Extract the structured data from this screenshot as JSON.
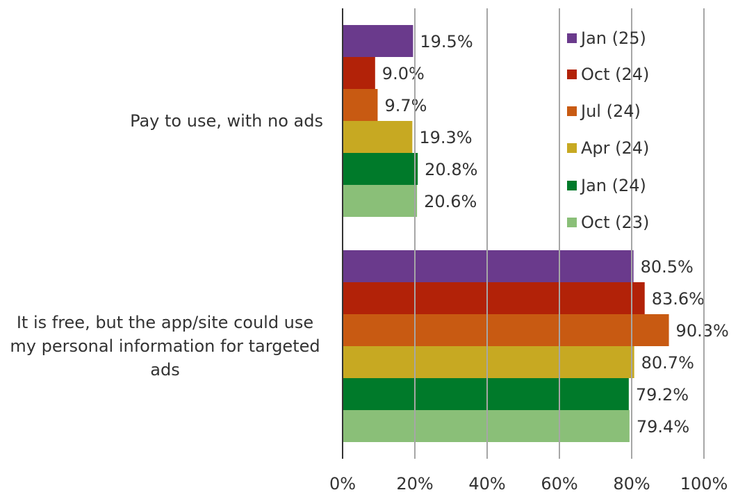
{
  "chart_data": {
    "type": "barh",
    "categories": [
      "Pay to use, with no ads",
      "It is free, but the app/site could use my personal information for targeted ads"
    ],
    "series": [
      {
        "name": "Jan (25)",
        "color": "#6a3a8c",
        "values": [
          19.5,
          80.5
        ],
        "value_labels": [
          "19.5%",
          "80.5%"
        ]
      },
      {
        "name": "Oct (24)",
        "color": "#b22208",
        "values": [
          9.0,
          83.6
        ],
        "value_labels": [
          "9.0%",
          "83.6%"
        ]
      },
      {
        "name": "Jul (24)",
        "color": "#c85a12",
        "values": [
          9.7,
          90.3
        ],
        "value_labels": [
          "9.7%",
          "90.3%"
        ]
      },
      {
        "name": "Apr (24)",
        "color": "#c7a922",
        "values": [
          19.3,
          80.7
        ],
        "value_labels": [
          "19.3%",
          "80.7%"
        ]
      },
      {
        "name": "Jan (24)",
        "color": "#007a2a",
        "values": [
          20.8,
          79.2
        ],
        "value_labels": [
          "20.8%",
          "79.2%"
        ]
      },
      {
        "name": "Oct (23)",
        "color": "#8abf78",
        "values": [
          20.6,
          79.4
        ],
        "value_labels": [
          "20.6%",
          "79.4%"
        ]
      }
    ],
    "xlim": [
      0,
      100
    ],
    "xticks": [
      {
        "value": 0,
        "label": "0%"
      },
      {
        "value": 20,
        "label": "20%"
      },
      {
        "value": 40,
        "label": "40%"
      },
      {
        "value": 60,
        "label": "60%"
      },
      {
        "value": 80,
        "label": "80%"
      },
      {
        "value": 100,
        "label": "100%"
      }
    ],
    "grid": true,
    "legend": "upper right"
  }
}
